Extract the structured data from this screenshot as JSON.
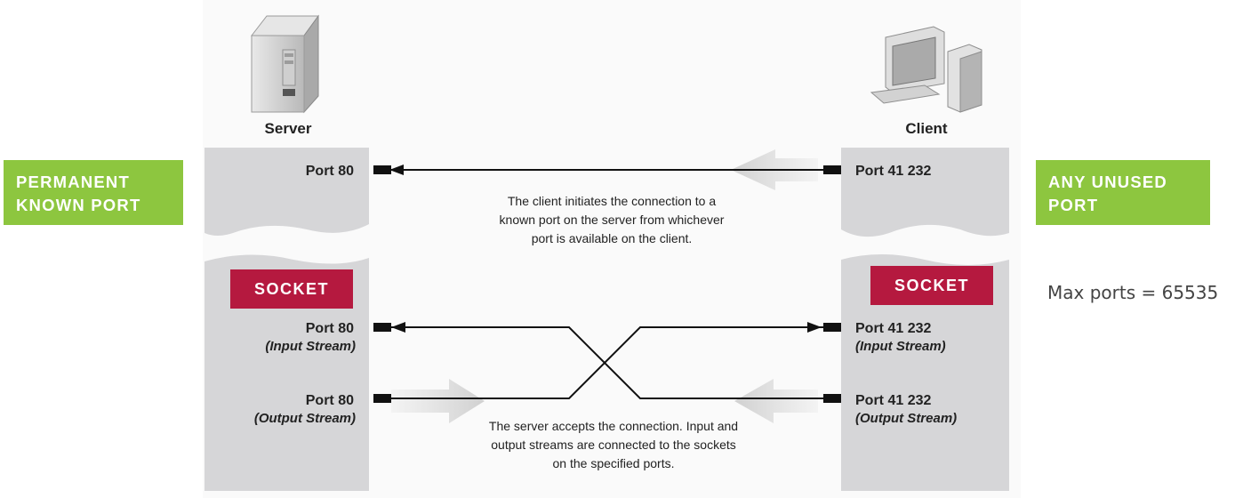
{
  "nodes": {
    "server_label": "Server",
    "client_label": "Client"
  },
  "badges": {
    "left_line1": "PERMANENT",
    "left_line2": "KNOWN PORT",
    "right_line1": "ANY UNUSED",
    "right_line2": "PORT",
    "socket_left": "SOCKET",
    "socket_right": "SOCKET"
  },
  "ports": {
    "server_port": "Port 80",
    "client_port": "Port 41 232",
    "server_in_port": "Port 80",
    "server_in_stream": "(Input Stream)",
    "server_out_port": "Port 80",
    "server_out_stream": "(Output Stream)",
    "client_in_port": "Port 41 232",
    "client_in_stream": "(Input Stream)",
    "client_out_port": "Port 41 232",
    "client_out_stream": "(Output Stream)"
  },
  "notes": {
    "max_ports": "Max ports = 65535",
    "top_caption_1": "The client initiates the connection to a",
    "top_caption_2": "known port on the server from whichever",
    "top_caption_3": "port is available on the client.",
    "bottom_caption_1": "The server accepts the connection. Input and",
    "bottom_caption_2": "output streams are connected to the sockets",
    "bottom_caption_3": "on the specified ports."
  },
  "colors": {
    "green": "#8dc63f",
    "socket_red": "#b5193f",
    "panel_gray": "#d6d6d8",
    "arrow_gray": "#cccccc"
  }
}
